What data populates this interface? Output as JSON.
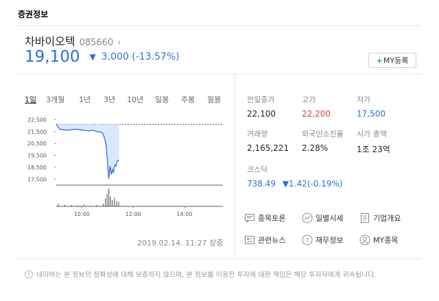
{
  "section_title": "증권정보",
  "stock": {
    "name": "차바이오텍",
    "code": "085660",
    "price": "19,100",
    "change": "3,000 (-13.57%)"
  },
  "my_button": {
    "plus": "+",
    "label": "MY등록"
  },
  "period_tabs": [
    "1일",
    "3개월",
    "1년",
    "3년",
    "10년",
    "일봉",
    "주봉",
    "월봉"
  ],
  "timestamp": "2019.02.14. 11:27 장중",
  "stats": {
    "prev_close": {
      "label": "전일종가",
      "value": "22,100"
    },
    "high": {
      "label": "고가",
      "value": "22,200"
    },
    "low": {
      "label": "저가",
      "value": "17,500"
    },
    "volume": {
      "label": "거래량",
      "value": "2,165,221"
    },
    "foreign": {
      "label": "외국인소진율",
      "value": "2.28%"
    },
    "market_cap": {
      "label": "시가 총액",
      "value": "1조 23억"
    },
    "kosdaq": {
      "label": "코스닥",
      "value": "738.49",
      "change": "▼1.42(-0.19%)"
    }
  },
  "links": [
    {
      "label": "종목토론",
      "icon": "discussion-icon"
    },
    {
      "label": "일별시세",
      "icon": "trend-icon"
    },
    {
      "label": "기업개요",
      "icon": "company-icon"
    },
    {
      "label": "관련뉴스",
      "icon": "news-icon"
    },
    {
      "label": "재무정보",
      "icon": "finance-icon"
    },
    {
      "label": "MY종목",
      "icon": "user-icon"
    }
  ],
  "disclaimer": "네이버는 본 정보의 정확성에 대해 보증하지 않으며, 본 정보를 이용한 투자에 대한 책임은 해당 투자자에게 귀속됩니다.",
  "colors": {
    "rise": "#e63c3c",
    "fall": "#2e6fd6",
    "accent_green": "#19ad4e"
  },
  "chart_data": {
    "type": "line",
    "y_ticks": [
      "22,500",
      "21,500",
      "20,500",
      "19,500",
      "18,500",
      "17,500"
    ],
    "x_ticks": [
      "10:00",
      "12:00",
      "14:00"
    ],
    "ylim": [
      17000,
      22700
    ],
    "prev_close_ref": 22100,
    "x_range_minutes": [
      540,
      930
    ],
    "price_series": [
      {
        "t": 540,
        "v": 22100
      },
      {
        "t": 548,
        "v": 21700
      },
      {
        "t": 556,
        "v": 21650
      },
      {
        "t": 565,
        "v": 21600
      },
      {
        "t": 575,
        "v": 21650
      },
      {
        "t": 585,
        "v": 21700
      },
      {
        "t": 595,
        "v": 21650
      },
      {
        "t": 605,
        "v": 21600
      },
      {
        "t": 615,
        "v": 21550
      },
      {
        "t": 625,
        "v": 21600
      },
      {
        "t": 635,
        "v": 21500
      },
      {
        "t": 645,
        "v": 21450
      },
      {
        "t": 650,
        "v": 21300
      },
      {
        "t": 654,
        "v": 20800
      },
      {
        "t": 657,
        "v": 20300
      },
      {
        "t": 660,
        "v": 18900
      },
      {
        "t": 663,
        "v": 17550
      },
      {
        "t": 666,
        "v": 18600
      },
      {
        "t": 669,
        "v": 17900
      },
      {
        "t": 672,
        "v": 18300
      },
      {
        "t": 674,
        "v": 18100
      },
      {
        "t": 676,
        "v": 18500
      },
      {
        "t": 678,
        "v": 18700
      },
      {
        "t": 680,
        "v": 18600
      },
      {
        "t": 683,
        "v": 19050
      },
      {
        "t": 687,
        "v": 19100
      }
    ],
    "volume_series": [
      {
        "t": 545,
        "v": 0.15
      },
      {
        "t": 560,
        "v": 0.1
      },
      {
        "t": 575,
        "v": 0.08
      },
      {
        "t": 590,
        "v": 0.06
      },
      {
        "t": 605,
        "v": 0.1
      },
      {
        "t": 620,
        "v": 0.05
      },
      {
        "t": 635,
        "v": 0.08
      },
      {
        "t": 650,
        "v": 0.15
      },
      {
        "t": 655,
        "v": 0.45
      },
      {
        "t": 659,
        "v": 0.7
      },
      {
        "t": 663,
        "v": 1.0
      },
      {
        "t": 667,
        "v": 0.55
      },
      {
        "t": 671,
        "v": 0.35
      },
      {
        "t": 676,
        "v": 0.5
      },
      {
        "t": 681,
        "v": 0.3
      },
      {
        "t": 686,
        "v": 0.25
      }
    ]
  }
}
